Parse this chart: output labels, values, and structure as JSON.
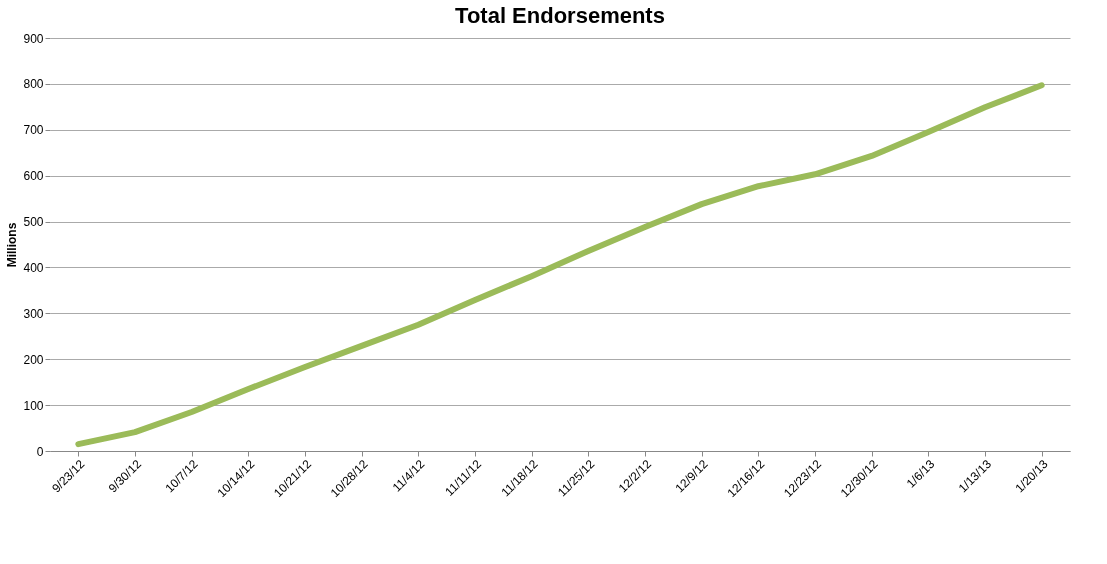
{
  "chart_data": {
    "type": "line",
    "title": "Total Endorsements",
    "ylabel": "Millions",
    "categories": [
      "9/23/12",
      "9/30/12",
      "10/7/12",
      "10/14/12",
      "10/21/12",
      "10/28/12",
      "11/4/12",
      "11/11/12",
      "11/18/12",
      "11/25/12",
      "12/2/12",
      "12/9/12",
      "12/16/12",
      "12/23/12",
      "12/30/12",
      "1/6/13",
      "1/13/13",
      "1/20/13"
    ],
    "series": [
      {
        "color": "#9bbb59",
        "values": [
          15,
          41,
          85,
          135,
          183,
          229,
          275,
          329,
          381,
          436,
          488,
          538,
          577,
          603,
          643,
          695,
          749,
          797
        ]
      }
    ],
    "ylim": [
      0,
      900
    ],
    "yticks": [
      0,
      100,
      200,
      300,
      400,
      500,
      600,
      700,
      800,
      900
    ],
    "grid": "y",
    "marker": "none",
    "line_style": "solid"
  }
}
